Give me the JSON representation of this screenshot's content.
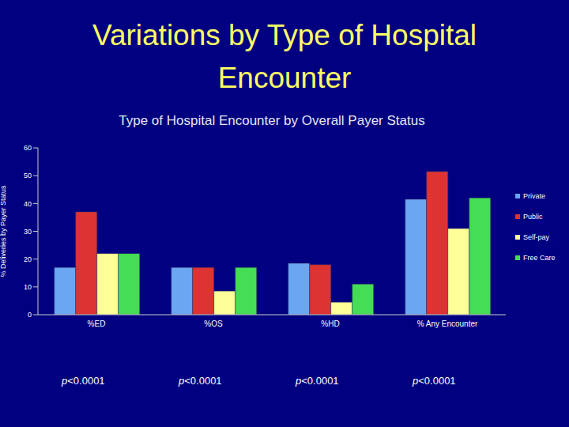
{
  "slide_title": "Variations by Type of Hospital Encounter",
  "chart_data": {
    "type": "bar",
    "title": "Type of Hospital Encounter by Overall Payer Status",
    "y_label": "% Deliveries by Payer Status",
    "categories": [
      "%ED",
      "%OS",
      "%HD",
      "% Any Encounter"
    ],
    "series": [
      {
        "name": "Private",
        "color": "#6aa6f2",
        "values": [
          17,
          17,
          18.5,
          41.5
        ]
      },
      {
        "name": "Public",
        "color": "#dd3333",
        "values": [
          37,
          17,
          18,
          51.5
        ]
      },
      {
        "name": "Self-pay",
        "color": "#ffff99",
        "values": [
          22,
          8.5,
          4.5,
          31
        ]
      },
      {
        "name": "Free Care",
        "color": "#44dd55",
        "values": [
          22,
          17,
          11,
          42
        ]
      }
    ],
    "ylim": [
      0,
      60
    ],
    "yticks": [
      0,
      10,
      20,
      30,
      40,
      50,
      60
    ],
    "grid": false,
    "legend": "right",
    "annotations": [
      "p<0.0001",
      "p<0.0001",
      "p<0.0001",
      "p<0.0001"
    ]
  }
}
